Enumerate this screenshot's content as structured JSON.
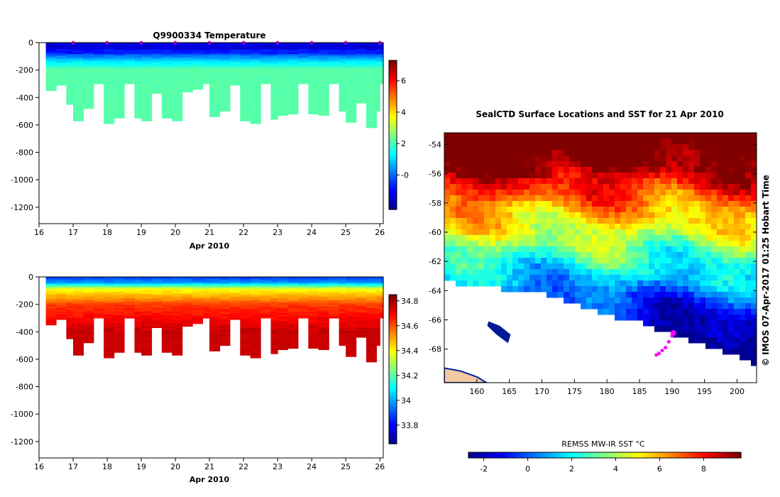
{
  "chart_data": [
    {
      "type": "heatmap",
      "id": "temperature-section",
      "title": "Q9900334  Temperature",
      "xlabel": "Apr 2010",
      "xlim": [
        16,
        26.1
      ],
      "ylim": [
        -1320,
        0
      ],
      "x_ticks": [
        "16",
        "17",
        "18",
        "19",
        "20",
        "21",
        "22",
        "23",
        "24",
        "25",
        "26"
      ],
      "y_ticks": [
        "0",
        "-200",
        "-400",
        "-600",
        "-800",
        "-1000",
        "-1200"
      ],
      "y_tick_values": [
        0,
        -200,
        -400,
        -600,
        -800,
        -1000,
        -1200
      ],
      "colorbar": {
        "min": -2.2,
        "max": 7.3,
        "ticks": [
          "-0",
          "2",
          "4",
          "6"
        ],
        "tick_values": [
          0,
          2,
          4,
          6
        ]
      },
      "profile_days": [
        16.2,
        16.5,
        16.8,
        17.0,
        17.3,
        17.6,
        17.9,
        18.2,
        18.5,
        18.8,
        19.0,
        19.3,
        19.6,
        19.9,
        20.2,
        20.5,
        20.8,
        21.0,
        21.3,
        21.6,
        21.9,
        22.2,
        22.5,
        22.8,
        23.0,
        23.3,
        23.6,
        23.9,
        24.2,
        24.5,
        24.8,
        25.0,
        25.3,
        25.6,
        25.9,
        26.0
      ],
      "profile_max_depth": [
        350,
        310,
        450,
        570,
        480,
        300,
        590,
        550,
        300,
        550,
        570,
        370,
        550,
        570,
        360,
        340,
        300,
        540,
        500,
        310,
        570,
        590,
        300,
        560,
        530,
        520,
        300,
        520,
        530,
        300,
        500,
        580,
        440,
        620,
        500,
        300
      ],
      "profile_marker_days": [
        17,
        18,
        19,
        20,
        21,
        22,
        23,
        24,
        25,
        26
      ]
    },
    {
      "type": "heatmap",
      "id": "salinity-section",
      "title": "",
      "xlabel": "Apr 2010",
      "xlim": [
        16,
        26.1
      ],
      "ylim": [
        -1320,
        0
      ],
      "x_ticks": [
        "16",
        "17",
        "18",
        "19",
        "20",
        "21",
        "22",
        "23",
        "24",
        "25",
        "26"
      ],
      "y_ticks": [
        "0",
        "-200",
        "-400",
        "-600",
        "-800",
        "-1000",
        "-1200"
      ],
      "y_tick_values": [
        0,
        -200,
        -400,
        -600,
        -800,
        -1000,
        -1200
      ],
      "colorbar": {
        "min": 33.65,
        "max": 34.85,
        "ticks": [
          "33.8",
          "34",
          "34.2",
          "34.4",
          "34.6",
          "34.8"
        ],
        "tick_values": [
          33.8,
          34.0,
          34.2,
          34.4,
          34.6,
          34.8
        ]
      }
    },
    {
      "type": "heatmap",
      "id": "sst-map",
      "title": "SealCTD Surface Locations and SST for 21 Apr 2010",
      "xlim": [
        155,
        203
      ],
      "ylim": [
        -70.3,
        -53.2
      ],
      "x_ticks": [
        "160",
        "165",
        "170",
        "175",
        "180",
        "185",
        "190",
        "195",
        "200"
      ],
      "x_tick_values": [
        160,
        165,
        170,
        175,
        180,
        185,
        190,
        195,
        200
      ],
      "y_ticks": [
        "-54",
        "-56",
        "-58",
        "-60",
        "-62",
        "-64",
        "-66",
        "-68"
      ],
      "y_tick_values": [
        -54,
        -56,
        -58,
        -60,
        -62,
        -64,
        -66,
        -68
      ],
      "colorbar": {
        "label": "REMSS MW-IR SST °C",
        "min": -2.7,
        "max": 9.7,
        "ticks": [
          "-2",
          "0",
          "2",
          "4",
          "6",
          "8"
        ],
        "tick_values": [
          -2,
          0,
          2,
          4,
          6,
          8
        ]
      },
      "track_points": [
        [
          187.6,
          -68.4
        ],
        [
          188.0,
          -68.3
        ],
        [
          188.5,
          -68.1
        ],
        [
          189.0,
          -67.9
        ],
        [
          189.5,
          -67.5
        ],
        [
          190.0,
          -67.1
        ],
        [
          190.2,
          -66.9
        ]
      ],
      "credit": "© IMOS 07-Apr-2017 01:25 Hobart Time"
    }
  ],
  "colors": {
    "jet": [
      "#00008f",
      "#0000ff",
      "#0080ff",
      "#00ffff",
      "#80ff80",
      "#ffff00",
      "#ff8000",
      "#ff0000",
      "#800000"
    ],
    "land": "#f2c89f",
    "track": "#ff00ff",
    "frame": "#000000"
  }
}
